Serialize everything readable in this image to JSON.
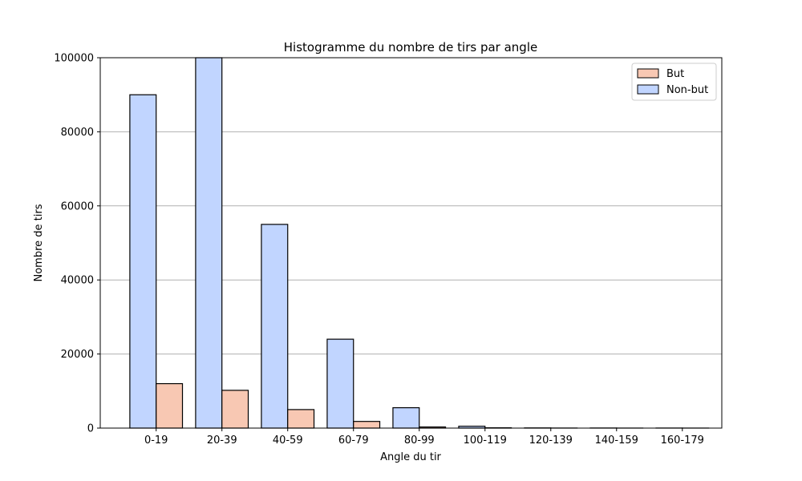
{
  "chart_data": {
    "type": "bar",
    "title": "Histogramme du nombre de tirs par angle",
    "xlabel": "Angle du tir",
    "ylabel": "Nombre de tirs",
    "categories": [
      "0-19",
      "20-39",
      "40-59",
      "60-79",
      "80-99",
      "100-119",
      "120-139",
      "140-159",
      "160-179"
    ],
    "ylim": [
      0,
      100000
    ],
    "yticks": [
      0,
      20000,
      40000,
      60000,
      80000,
      100000
    ],
    "grid": "y",
    "legend_position": "top-right",
    "series": [
      {
        "name": "Non-but",
        "color": "#c1d5ff",
        "values": [
          90000,
          100000,
          55000,
          24000,
          5500,
          500,
          50,
          30,
          20
        ]
      },
      {
        "name": "But",
        "color": "#f8c8b3",
        "values": [
          12000,
          10200,
          5000,
          1800,
          300,
          80,
          20,
          10,
          10
        ]
      }
    ],
    "legend_order": [
      "But",
      "Non-but"
    ]
  }
}
